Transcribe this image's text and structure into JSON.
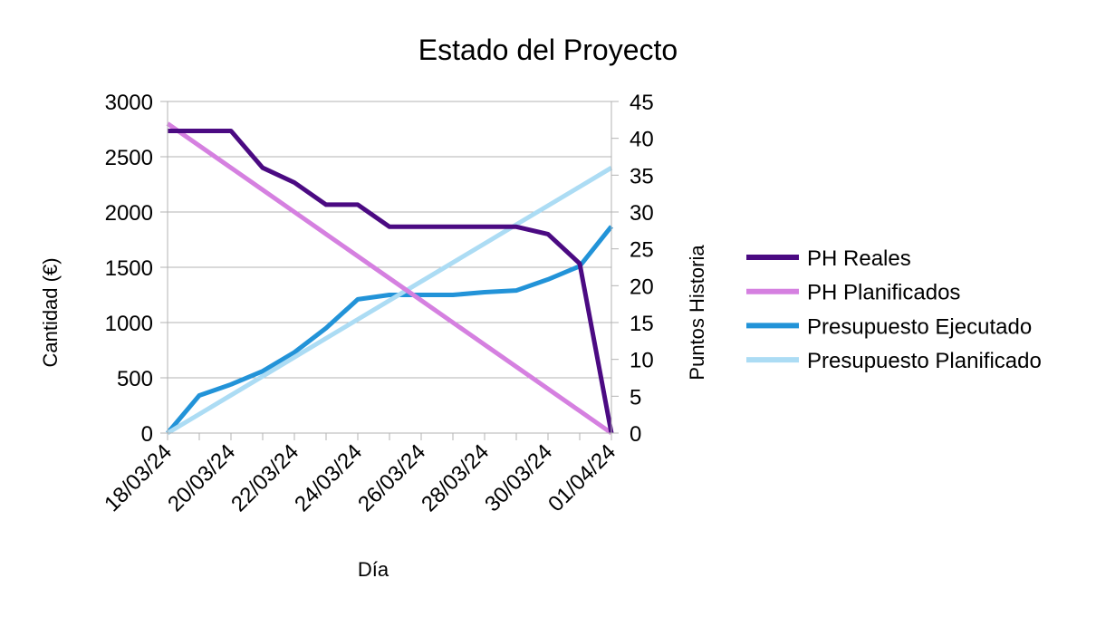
{
  "chart_data": {
    "type": "line",
    "title": "Estado del Proyecto",
    "xlabel": "Día",
    "ylabel_left": "Cantidad (€)",
    "ylabel_right": "Puntos Historia",
    "x": [
      "18/03/24",
      "19/03/24",
      "20/03/24",
      "21/03/24",
      "22/03/24",
      "23/03/24",
      "24/03/24",
      "25/03/24",
      "26/03/24",
      "27/03/24",
      "28/03/24",
      "29/03/24",
      "30/03/24",
      "31/03/24",
      "01/04/24"
    ],
    "x_tick_labels": [
      "18/03/24",
      "20/03/24",
      "22/03/24",
      "24/03/24",
      "26/03/24",
      "28/03/24",
      "30/03/24",
      "01/04/24"
    ],
    "ylim_left": [
      0,
      3000
    ],
    "yticks_left": [
      0,
      500,
      1000,
      1500,
      2000,
      2500,
      3000
    ],
    "ylim_right": [
      0,
      45
    ],
    "yticks_right": [
      0,
      5,
      10,
      15,
      20,
      25,
      30,
      35,
      40,
      45
    ],
    "grid": true,
    "legend_position": "right",
    "series": [
      {
        "name": "PH Reales",
        "axis": "right",
        "color": "#4b0a82",
        "values": [
          41,
          41,
          41,
          36,
          34,
          31,
          31,
          28,
          28,
          28,
          28,
          28,
          27,
          23,
          0
        ]
      },
      {
        "name": "PH Planificados",
        "axis": "right",
        "color": "#d580e0",
        "values": [
          42,
          39,
          36,
          33,
          30,
          27,
          24,
          21,
          18,
          15,
          12,
          9,
          6,
          3,
          0
        ]
      },
      {
        "name": "Presupuesto Ejecutado",
        "axis": "left",
        "color": "#2293d8",
        "values": [
          0,
          340,
          440,
          560,
          730,
          950,
          1210,
          1250,
          1250,
          1250,
          1275,
          1290,
          1390,
          1510,
          1870
        ]
      },
      {
        "name": "Presupuesto Planificado",
        "axis": "left",
        "color": "#acdcf4",
        "values": [
          0,
          171,
          343,
          514,
          686,
          857,
          1029,
          1200,
          1371,
          1543,
          1714,
          1886,
          2057,
          2229,
          2400
        ]
      }
    ]
  }
}
